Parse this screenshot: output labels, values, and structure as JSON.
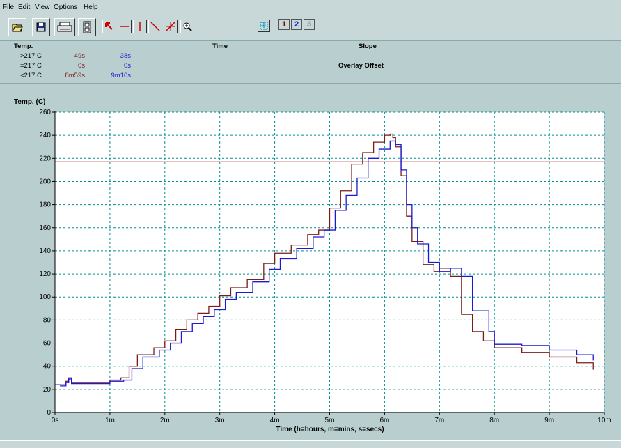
{
  "menu": {
    "file": "File",
    "edit": "Edit",
    "view": "View",
    "options": "Options",
    "help": "Help"
  },
  "toolbar": {
    "icons": [
      "open-folder-icon",
      "save-disk-icon",
      "printer-icon",
      "layout-icon",
      "pointer-arrow-icon",
      "horizontal-line-icon",
      "vertical-line-icon",
      "diagonal-line-icon",
      "cross-line-icon",
      "zoom-icon",
      "grid-icon"
    ],
    "btn1": "1",
    "btn2": "2",
    "btn3": "3"
  },
  "stats": {
    "temp_header": "Temp.",
    "time_header": "Time",
    "slope_header": "Slope",
    "overlay_offset": "Overlay Offset",
    "rows": [
      {
        "label": ">217 C",
        "red": "49s",
        "blue": "38s"
      },
      {
        "label": "=217 C",
        "red": "0s",
        "blue": "0s"
      },
      {
        "label": "<217 C",
        "red": "8m59s",
        "blue": "9m10s"
      }
    ]
  },
  "colors": {
    "red_series": "#7a1c1c",
    "blue_series": "#1a1ad4",
    "limit_line": "#c05050",
    "grid": "#009090"
  },
  "chart_data": {
    "type": "line",
    "ylabel": "Temp. (C)",
    "xlabel": "Time (h=hours, m=mins, s=secs)",
    "xlim": [
      0,
      10
    ],
    "ylim": [
      0,
      260
    ],
    "x_ticks": [
      "0s",
      "1m",
      "2m",
      "3m",
      "4m",
      "5m",
      "6m",
      "7m",
      "8m",
      "9m",
      "10m"
    ],
    "y_ticks": [
      "0",
      "20",
      "40",
      "60",
      "80",
      "100",
      "120",
      "140",
      "160",
      "180",
      "200",
      "220",
      "240",
      "260"
    ],
    "grid": true,
    "reference_line": {
      "y": 217
    },
    "series": [
      {
        "color": "red",
        "x": [
          0,
          0.1,
          0.2,
          0.25,
          0.3,
          0.5,
          1.0,
          1.2,
          1.35,
          1.5,
          1.8,
          2.0,
          2.2,
          2.4,
          2.6,
          2.8,
          3.0,
          3.2,
          3.5,
          3.8,
          4.0,
          4.3,
          4.6,
          4.8,
          5.0,
          5.2,
          5.4,
          5.6,
          5.8,
          6.0,
          6.1,
          6.15,
          6.2,
          6.3,
          6.4,
          6.5,
          6.7,
          6.9,
          7.0,
          7.2,
          7.4,
          7.6,
          7.8,
          8.0,
          8.5,
          9.0,
          9.5,
          9.8
        ],
        "y": [
          24,
          24,
          27,
          30,
          26,
          26,
          28,
          30,
          40,
          50,
          56,
          62,
          72,
          80,
          86,
          92,
          101,
          108,
          115,
          129,
          138,
          145,
          154,
          158,
          177,
          192,
          215,
          225,
          234,
          240,
          241,
          238,
          230,
          205,
          170,
          148,
          128,
          122,
          125,
          118,
          85,
          70,
          62,
          56,
          52,
          48,
          43,
          37
        ]
      },
      {
        "color": "blue",
        "x": [
          0,
          0.1,
          0.2,
          0.25,
          0.3,
          0.5,
          1.0,
          1.25,
          1.4,
          1.6,
          1.9,
          2.1,
          2.3,
          2.5,
          2.7,
          2.9,
          3.1,
          3.3,
          3.6,
          3.9,
          4.1,
          4.4,
          4.7,
          4.9,
          5.1,
          5.3,
          5.5,
          5.7,
          5.9,
          6.1,
          6.2,
          6.3,
          6.4,
          6.5,
          6.6,
          6.8,
          7.0,
          7.2,
          7.4,
          7.6,
          7.9,
          8.0,
          8.5,
          9.0,
          9.5,
          9.8
        ],
        "y": [
          24,
          23,
          26,
          29,
          25,
          25,
          27,
          28,
          38,
          48,
          54,
          60,
          70,
          77,
          83,
          89,
          98,
          104,
          113,
          124,
          133,
          142,
          152,
          158,
          175,
          188,
          203,
          220,
          228,
          235,
          232,
          210,
          180,
          160,
          146,
          130,
          122,
          125,
          118,
          88,
          70,
          59,
          58,
          54,
          50,
          45
        ]
      }
    ]
  }
}
